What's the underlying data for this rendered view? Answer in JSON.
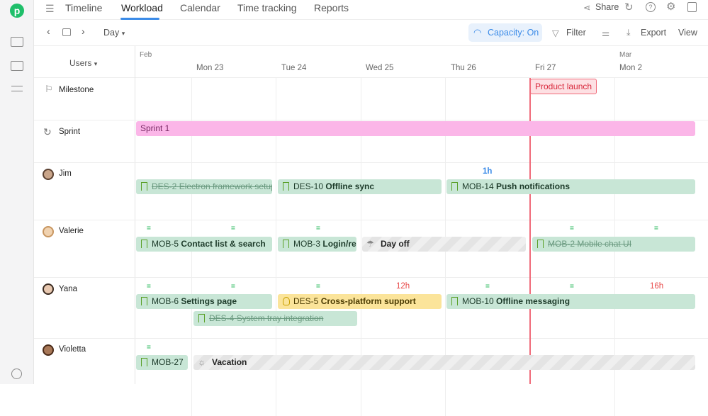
{
  "tabs": [
    "Timeline",
    "Workload",
    "Calendar",
    "Time tracking",
    "Reports"
  ],
  "active_tab": "Workload",
  "top_right": {
    "share": "Share"
  },
  "toolbar": {
    "scale": "Day",
    "capacity": "Capacity: On",
    "filter": "Filter",
    "export": "Export",
    "view": "View"
  },
  "grid": {
    "users_label": "Users",
    "months": [
      "Feb",
      "Mar"
    ],
    "days": [
      "Mon 23",
      "Tue 24",
      "Wed 25",
      "Thu 26",
      "Fri 27",
      "Mon 2"
    ]
  },
  "rows": {
    "milestone": "Milestone",
    "sprint": "Sprint",
    "users": [
      "Jim",
      "Valerie",
      "Yana",
      "Violetta"
    ]
  },
  "milestone": "Product launch",
  "sprint": "Sprint 1",
  "tasks": {
    "jim": [
      {
        "id": "DES-2",
        "title": "Electron framework setup"
      },
      {
        "id": "DES-10",
        "title": "Offline sync"
      },
      {
        "id": "MOB-14",
        "title": "Push notifications"
      }
    ],
    "valerie": [
      {
        "id": "MOB-5",
        "title": "Contact list & search"
      },
      {
        "id": "MOB-3",
        "title": "Login/registration"
      },
      {
        "title": "Day off"
      },
      {
        "id": "MOB-2",
        "title": "Mobile chat UI"
      }
    ],
    "yana": [
      {
        "id": "MOB-6",
        "title": "Settings page"
      },
      {
        "id": "DES-5",
        "title": "Cross-platform support"
      },
      {
        "id": "MOB-10",
        "title": "Offline messaging"
      },
      {
        "id": "DES-4",
        "title": "System tray integration"
      }
    ],
    "violetta": [
      {
        "id": "MOB-27"
      },
      {
        "title": "Vacation"
      }
    ]
  },
  "capacity": {
    "ok": "=",
    "jim_thu": "1h",
    "yana_wed": "12h",
    "yana_mon": "16h"
  },
  "colors": {
    "accent": "#3b8be8",
    "today_line": "#f06b7a",
    "task": "#c8e6d6",
    "sprint": "#fbb6e8",
    "warning": "#e84a4a"
  }
}
